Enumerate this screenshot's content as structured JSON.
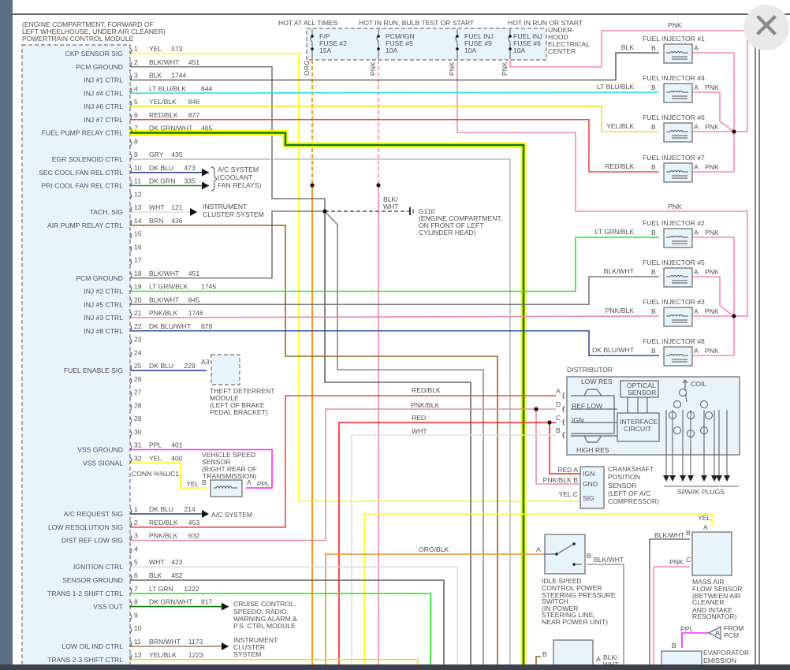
{
  "pcm": {
    "location": [
      "(ENGINE COMPARTMENT, FORWARD OF",
      "LEFT WHEELHOUSE, UNDER AIR CLEANER)"
    ],
    "title": "POWERTRAIN CONTROL MODULE",
    "connector1": [
      {
        "pin": "1",
        "function": "CKP SENSOR SIG",
        "color": "YEL",
        "circuit": "573"
      },
      {
        "pin": "2",
        "function": "PCM GROUND",
        "color": "BLK/WHT",
        "circuit": "451"
      },
      {
        "pin": "3",
        "function": "INJ #1 CTRL",
        "color": "BLK",
        "circuit": "1744"
      },
      {
        "pin": "4",
        "function": "INJ #4 CTRL",
        "color": "LT BLU/BLK",
        "circuit": "844"
      },
      {
        "pin": "5",
        "function": "INJ #6 CTRL",
        "color": "YEL/BLK",
        "circuit": "846"
      },
      {
        "pin": "6",
        "function": "INJ #7 CTRL",
        "color": "RED/BLK",
        "circuit": "877"
      },
      {
        "pin": "7",
        "function": "FUEL PUMP RELAY CTRL",
        "color": "DK GRN/WHT",
        "circuit": "465"
      },
      {
        "pin": "8",
        "function": "",
        "color": "",
        "circuit": ""
      },
      {
        "pin": "9",
        "function": "EGR SOLENOID CTRL",
        "color": "GRY",
        "circuit": "435"
      },
      {
        "pin": "10",
        "function": "SEC COOL FAN REL CTRL",
        "color": "DK BLU",
        "circuit": "473"
      },
      {
        "pin": "11",
        "function": "PRI COOL FAN REL CTRL",
        "color": "DK GRN",
        "circuit": "335"
      },
      {
        "pin": "12",
        "function": "",
        "color": "",
        "circuit": ""
      },
      {
        "pin": "13",
        "function": "TACH. SIG",
        "color": "WHT",
        "circuit": "121"
      },
      {
        "pin": "14",
        "function": "AIR PUMP RELAY CTRL",
        "color": "BRN",
        "circuit": "436"
      },
      {
        "pin": "15",
        "function": "",
        "color": "",
        "circuit": ""
      },
      {
        "pin": "16",
        "function": "",
        "color": "",
        "circuit": ""
      },
      {
        "pin": "17",
        "function": "",
        "color": "",
        "circuit": ""
      },
      {
        "pin": "18",
        "function": "PCM GROUND",
        "color": "BLK/WHT",
        "circuit": "451"
      },
      {
        "pin": "19",
        "function": "INJ #2 CTRL",
        "color": "LT GRN/BLK",
        "circuit": "1745"
      },
      {
        "pin": "20",
        "function": "INJ #5 CTRL",
        "color": "BLK/WHT",
        "circuit": "845"
      },
      {
        "pin": "21",
        "function": "INJ #3 CTRL",
        "color": "PNK/BLK",
        "circuit": "1746"
      },
      {
        "pin": "22",
        "function": "INJ #8 CTRL",
        "color": "DK BLU/WHT",
        "circuit": "878"
      },
      {
        "pin": "23",
        "function": "",
        "color": "",
        "circuit": ""
      },
      {
        "pin": "24",
        "function": "",
        "color": "",
        "circuit": ""
      },
      {
        "pin": "25",
        "function": "FUEL ENABLE SIG",
        "color": "DK BLU",
        "circuit": "229"
      },
      {
        "pin": "26",
        "function": "",
        "color": "",
        "circuit": ""
      },
      {
        "pin": "27",
        "function": "",
        "color": "",
        "circuit": ""
      },
      {
        "pin": "28",
        "function": "",
        "color": "",
        "circuit": ""
      },
      {
        "pin": "29",
        "function": "",
        "color": "",
        "circuit": ""
      },
      {
        "pin": "30",
        "function": "",
        "color": "",
        "circuit": ""
      },
      {
        "pin": "31",
        "function": "VSS GROUND",
        "color": "PPL",
        "circuit": "401"
      },
      {
        "pin": "32",
        "function": "VSS SIGNAL",
        "color": "YEL",
        "circuit": "400"
      }
    ],
    "connector_name": "CONN %%UC1",
    "connector2": [
      {
        "pin": "1",
        "function": "A/C REQUEST SIG",
        "color": "DK BLU",
        "circuit": "214"
      },
      {
        "pin": "2",
        "function": "LOW RESOLUTION SIG",
        "color": "RED/BLK",
        "circuit": "453"
      },
      {
        "pin": "3",
        "function": "DIST REF LOW SIG",
        "color": "PNK/BLK",
        "circuit": "632"
      },
      {
        "pin": "4",
        "function": "",
        "color": "",
        "circuit": ""
      },
      {
        "pin": "5",
        "function": "IGNITION CTRL",
        "color": "WHT",
        "circuit": "423"
      },
      {
        "pin": "6",
        "function": "SENSOR GROUND",
        "color": "BLK",
        "circuit": "452"
      },
      {
        "pin": "7",
        "function": "TRANS 1-2 SHIFT CTRL",
        "color": "LT GRN",
        "circuit": "1222"
      },
      {
        "pin": "8",
        "function": "VSS OUT",
        "color": "DK GRN/WHT",
        "circuit": "817"
      },
      {
        "pin": "9",
        "function": "",
        "color": "",
        "circuit": ""
      },
      {
        "pin": "10",
        "function": "",
        "color": "",
        "circuit": ""
      },
      {
        "pin": "11",
        "function": "LOW OIL IND CTRL",
        "color": "BRN/WHT",
        "circuit": "1173"
      },
      {
        "pin": "12",
        "function": "TRANS 2-3 SHIFT CTRL",
        "color": "YEL/BLK",
        "circuit": "1223"
      }
    ]
  },
  "wire_colors": {
    "YEL": "#ffff00",
    "BLK/WHT": "#7a7a7a",
    "BLK": "#666666",
    "LT BLU/BLK": "#22e2f0",
    "YEL/BLK": "#eee020",
    "RED/BLK": "#f04848",
    "DK GRN/WHT": "#0a7a0a",
    "GRY": "#bbbbbb",
    "DK BLU": "#1e3c96",
    "DK GRN": "#1c8c1c",
    "WHT": "#dddddd",
    "BRN": "#8c6a28",
    "LT GRN/BLK": "#22ee22",
    "PNK/BLK": "#e890a4",
    "DK BLU/WHT": "#3450a0",
    "PPL": "#ff22ff",
    "RED": "#ff2020",
    "LT GRN": "#22ee22",
    "BRN/WHT": "#9a8050",
    "ORG": "#ff8800",
    "ORG/BLK": "#f09030",
    "PNK": "#ff88a8",
    "highlight": "#ffff00"
  },
  "fuses": {
    "hot_at_all_times": "HOT AT ALL TIMES",
    "hot_run_bulb": "HOT IN RUN, BULB TEST OR START",
    "hot_run_start": "HOT IN RUN OR START",
    "items": [
      {
        "name": [
          "F/P",
          "FUSE #2",
          "15A"
        ],
        "wire": "ORG"
      },
      {
        "name": [
          "PCM/IGN",
          "FUSE #5",
          "10A"
        ],
        "wire": "PNK"
      },
      {
        "name": [
          "FUEL INJ",
          "FUSE #9",
          "10A"
        ],
        "wire": "PNK"
      },
      {
        "name": [
          "FUEL INJ",
          "FUSE #6",
          "10A"
        ],
        "wire": "PNK"
      }
    ],
    "center": [
      "UNDER-",
      "HOOD",
      "ELECTRICAL",
      "CENTER"
    ]
  },
  "ac_system": [
    "A/C SYSTEM",
    "(COOLANT",
    "FAN RELAYS)"
  ],
  "instrument_cluster": [
    "INSTRUMENT",
    "CLUSTER SYSTEM"
  ],
  "ground": {
    "wire": "BLK/",
    "wire2": "WHT",
    "name": "G110",
    "location": [
      "(ENGINE COMPARTMENT,",
      "ON FRONT OF LEFT",
      "CYLINDER HEAD)"
    ]
  },
  "theft_module": {
    "pin": "A3",
    "label": [
      "THEFT DETERRENT",
      "MODULE",
      "(LEFT OF BRAKE",
      "PEDAL BRACKET)"
    ]
  },
  "vss": {
    "label": [
      "VEHICLE SPEED",
      "SENSOR",
      "(RIGHT REAR OF",
      "TRANSMISSION)"
    ],
    "pin_b": "B",
    "pin_a": "A",
    "wire_b": "YEL",
    "wire_a": "PPL"
  },
  "ac_request_dest": "A/C SYSTEM",
  "vss_out_dest": [
    "CRUISE CONTROL,",
    "SPEEDO, RADIO,",
    "WARNING ALARM &",
    "P.S. CTRL MODULE"
  ],
  "low_oil_dest": [
    "INSTRUMENT",
    "CLUSTER",
    "SYSTEM"
  ],
  "injectors": [
    {
      "name": "FUEL INJECTOR #1",
      "b_wire": "BLK",
      "a_wire": ""
    },
    {
      "name": "FUEL INJECTOR #4",
      "b_wire": "LT BLU/BLK",
      "a_wire": "PNK"
    },
    {
      "name": "FUEL INJECTOR #6",
      "b_wire": "YEL/BLK",
      "a_wire": "PNK"
    },
    {
      "name": "FUEL INJECTOR #7",
      "b_wire": "RED/BLK",
      "a_wire": "PNK"
    },
    {
      "name": "FUEL INJECTOR #2",
      "b_wire": "LT GRN/BLK",
      "a_wire": "PNK"
    },
    {
      "name": "FUEL INJECTOR #5",
      "b_wire": "BLK/WHT",
      "a_wire": "PNK"
    },
    {
      "name": "FUEL INJECTOR #3",
      "b_wire": "PNK/BLK",
      "a_wire": "PNK"
    },
    {
      "name": "FUEL INJECTOR #8",
      "b_wire": "DK BLU/WHT",
      "a_wire": "PNK"
    }
  ],
  "injector_pins": {
    "a": "A",
    "b": "B"
  },
  "injector_feed": "PNK",
  "distributor": {
    "title": "DISTRIBUTOR",
    "low_res": "LOW RES",
    "ref_low": "REF LOW",
    "ign": "IGN",
    "high_res": "HIGH RES",
    "optical": [
      "OPTICAL",
      "SENSOR"
    ],
    "interface": [
      "INTERFACE",
      "CIRCUIT"
    ],
    "coil": "COIL",
    "pins": [
      "A",
      "D",
      "C",
      "B"
    ],
    "spark_plugs": "SPARK PLUGS"
  },
  "dist_wires": [
    "RED/BLK",
    "PNK/BLK",
    "RED",
    "WHT"
  ],
  "ckp": {
    "label": [
      "CRANKSHAFT",
      "POSITION",
      "SENSOR",
      "(LEFT OF A/C",
      "COMPRESSOR)"
    ],
    "pins": [
      {
        "wire": "RED",
        "pin": "A",
        "name": "IGN"
      },
      {
        "wire": "PNK/BLK",
        "pin": "B",
        "name": "GND"
      },
      {
        "wire": "YEL",
        "pin": "C",
        "name": "SIG"
      }
    ]
  },
  "maf": {
    "label": [
      "MASS AIR",
      "FLOW SENSOR",
      "(BETWEEN AIR",
      "CLEANER",
      "AND INTAKE",
      "RESONATOR)"
    ],
    "wire_a": "YEL",
    "pin_a": "A",
    "wire_b": "BLK/WHT",
    "pin_b": "B",
    "wire_c": "PNK",
    "pin_c": "C"
  },
  "isc": {
    "label": [
      "IDLE SPEED",
      "CONTROL POWER",
      "STEERING PRESSURE",
      "SWITCH",
      "(IN POWER",
      "STEERING LINE,",
      "NEAR POWER UNIT)"
    ],
    "pin_a": "A",
    "pin_b": "B",
    "wire_a": "ORG/BLK",
    "wire_b": "BLK/WHT"
  },
  "lower_switch": {
    "pin_b": "B",
    "pin_a": "A",
    "wire_a": [
      "BLK/",
      "WHT"
    ]
  },
  "evap": {
    "label": [
      "EVAPORATOR",
      "EMISSION"
    ],
    "pin_b": "B",
    "wire": "PPL",
    "from": [
      "FROM",
      "PCM"
    ],
    "from_pin": "A"
  },
  "close_label": "✕"
}
